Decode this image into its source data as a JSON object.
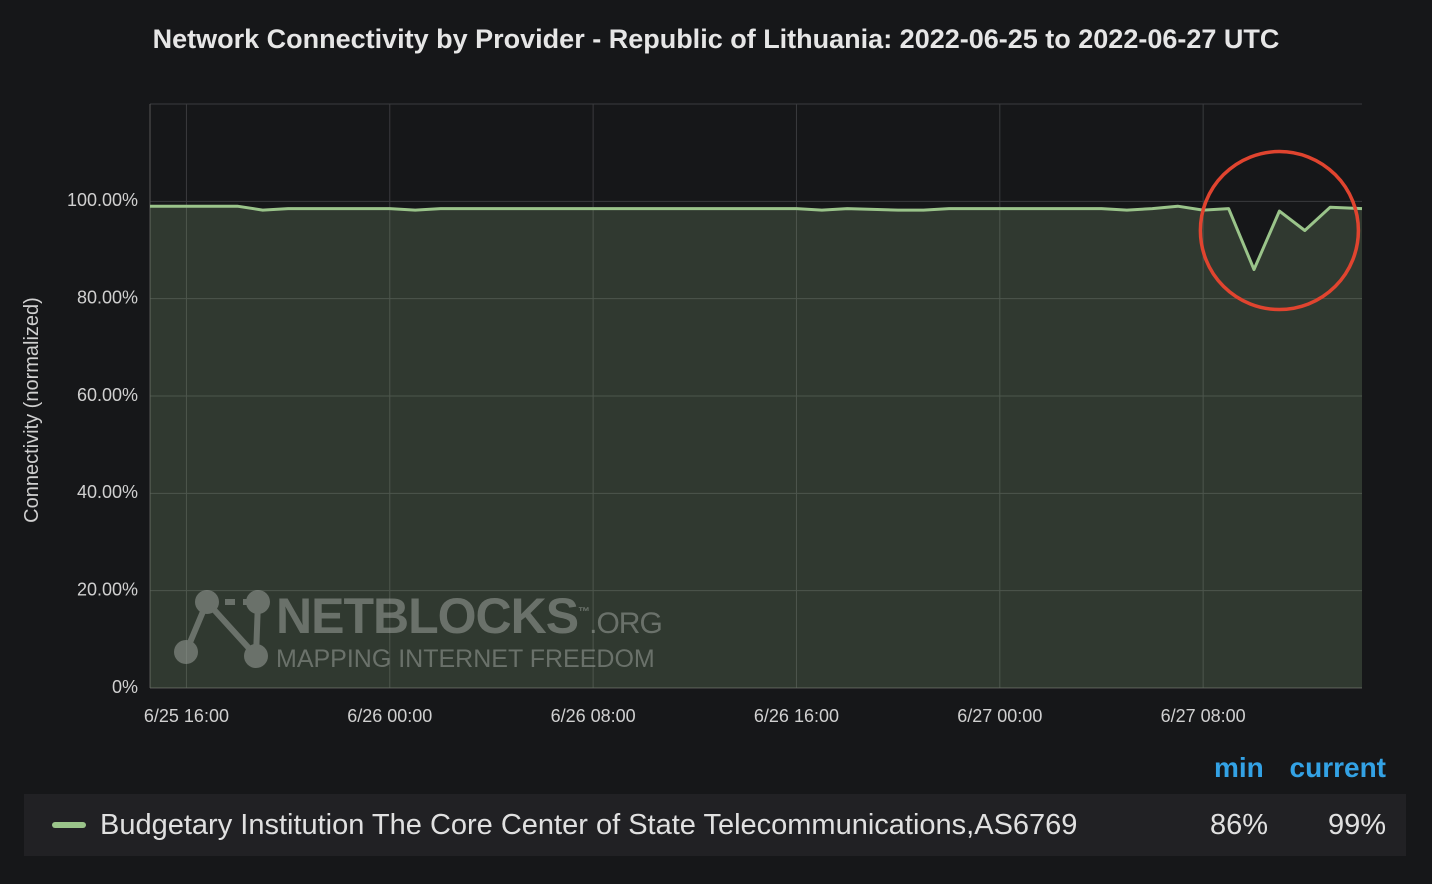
{
  "chart_data": {
    "type": "area",
    "title": "Network Connectivity by Provider - Republic of Lithuania: 2022-06-25 to 2022-06-27 UTC",
    "ylabel": "Connectivity (normalized)",
    "xlabel": "",
    "x_range": [
      "2022-06-25 14:34",
      "2022-06-27 14:15"
    ],
    "ylim": [
      0,
      120
    ],
    "y_ticks": [
      0,
      20,
      40,
      60,
      80,
      100
    ],
    "y_tick_labels": [
      "0%",
      "20.00%",
      "40.00%",
      "60.00%",
      "80.00%",
      "100.00%"
    ],
    "x_ticks": [
      "2022-06-25 16:00",
      "2022-06-26 00:00",
      "2022-06-26 08:00",
      "2022-06-26 16:00",
      "2022-06-27 00:00",
      "2022-06-27 08:00"
    ],
    "x_tick_labels": [
      "6/25 16:00",
      "6/26 00:00",
      "6/26 08:00",
      "6/26 16:00",
      "6/27 00:00",
      "6/27 08:00"
    ],
    "grid": true,
    "series": [
      {
        "name": "Budgetary Institution The Core Center of State Telecommunications,AS6769",
        "color": "#9ac48a",
        "x": [
          "2022-06-25 14:34",
          "2022-06-25 16:00",
          "2022-06-25 18:00",
          "2022-06-25 19:00",
          "2022-06-25 20:00",
          "2022-06-25 22:00",
          "2022-06-26 00:00",
          "2022-06-26 01:00",
          "2022-06-26 02:00",
          "2022-06-26 06:00",
          "2022-06-26 10:00",
          "2022-06-26 14:00",
          "2022-06-26 16:00",
          "2022-06-26 17:00",
          "2022-06-26 18:00",
          "2022-06-26 20:00",
          "2022-06-26 21:00",
          "2022-06-26 22:00",
          "2022-06-27 00:00",
          "2022-06-27 02:00",
          "2022-06-27 04:00",
          "2022-06-27 05:00",
          "2022-06-27 06:00",
          "2022-06-27 07:00",
          "2022-06-27 08:00",
          "2022-06-27 09:00",
          "2022-06-27 10:00",
          "2022-06-27 11:00",
          "2022-06-27 12:00",
          "2022-06-27 13:00",
          "2022-06-27 14:15"
        ],
        "values": [
          99.0,
          99.0,
          99.0,
          98.2,
          98.5,
          98.5,
          98.5,
          98.2,
          98.5,
          98.5,
          98.5,
          98.5,
          98.5,
          98.2,
          98.5,
          98.2,
          98.2,
          98.5,
          98.5,
          98.5,
          98.5,
          98.2,
          98.5,
          99.0,
          98.2,
          98.5,
          86.0,
          98.0,
          94.0,
          98.8,
          98.5
        ]
      }
    ],
    "highlight": {
      "shape": "circle",
      "color": "#e0442f",
      "center": [
        "2022-06-27 11:00",
        94
      ],
      "label": ""
    }
  },
  "legend": {
    "headers": {
      "min": "min",
      "current": "current"
    },
    "rows": [
      {
        "name": "Budgetary Institution The Core Center of State Telecommunications,AS6769",
        "min": "86%",
        "current": "99%"
      }
    ]
  },
  "watermark": {
    "name": "NETBLOCKS",
    "tld": ".ORG",
    "tm": "™",
    "tagline": "MAPPING INTERNET FREEDOM"
  }
}
